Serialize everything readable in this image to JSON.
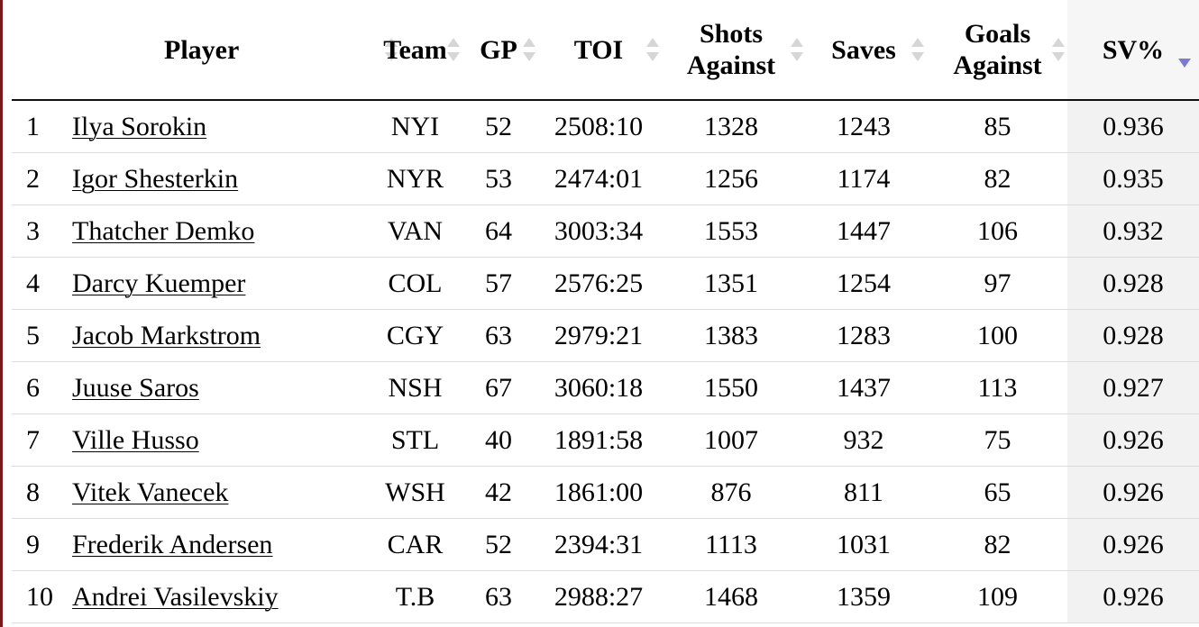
{
  "table": {
    "columns": [
      {
        "key": "player",
        "label": "Player",
        "sortable": true
      },
      {
        "key": "team",
        "label": "Team",
        "sortable": true
      },
      {
        "key": "gp",
        "label": "GP",
        "sortable": true
      },
      {
        "key": "toi",
        "label": "TOI",
        "sortable": true
      },
      {
        "key": "shots_against",
        "label_line1": "Shots",
        "label_line2": "Against",
        "sortable": true
      },
      {
        "key": "saves",
        "label": "Saves",
        "sortable": true
      },
      {
        "key": "goals_against",
        "label_line1": "Goals",
        "label_line2": "Against",
        "sortable": true
      },
      {
        "key": "sv_pct",
        "label": "SV%",
        "sortable": true,
        "sort": "descending"
      }
    ],
    "rows": [
      {
        "rank": "1",
        "player": "Ilya Sorokin",
        "team": "NYI",
        "gp": "52",
        "toi": "2508:10",
        "shots_against": "1328",
        "saves": "1243",
        "goals_against": "85",
        "sv_pct": "0.936"
      },
      {
        "rank": "2",
        "player": "Igor Shesterkin",
        "team": "NYR",
        "gp": "53",
        "toi": "2474:01",
        "shots_against": "1256",
        "saves": "1174",
        "goals_against": "82",
        "sv_pct": "0.935"
      },
      {
        "rank": "3",
        "player": "Thatcher Demko",
        "team": "VAN",
        "gp": "64",
        "toi": "3003:34",
        "shots_against": "1553",
        "saves": "1447",
        "goals_against": "106",
        "sv_pct": "0.932"
      },
      {
        "rank": "4",
        "player": "Darcy Kuemper",
        "team": "COL",
        "gp": "57",
        "toi": "2576:25",
        "shots_against": "1351",
        "saves": "1254",
        "goals_against": "97",
        "sv_pct": "0.928"
      },
      {
        "rank": "5",
        "player": "Jacob Markstrom",
        "team": "CGY",
        "gp": "63",
        "toi": "2979:21",
        "shots_against": "1383",
        "saves": "1283",
        "goals_against": "100",
        "sv_pct": "0.928"
      },
      {
        "rank": "6",
        "player": "Juuse Saros",
        "team": "NSH",
        "gp": "67",
        "toi": "3060:18",
        "shots_against": "1550",
        "saves": "1437",
        "goals_against": "113",
        "sv_pct": "0.927"
      },
      {
        "rank": "7",
        "player": "Ville Husso",
        "team": "STL",
        "gp": "40",
        "toi": "1891:58",
        "shots_against": "1007",
        "saves": "932",
        "goals_against": "75",
        "sv_pct": "0.926"
      },
      {
        "rank": "8",
        "player": "Vitek Vanecek",
        "team": "WSH",
        "gp": "42",
        "toi": "1861:00",
        "shots_against": "876",
        "saves": "811",
        "goals_against": "65",
        "sv_pct": "0.926"
      },
      {
        "rank": "9",
        "player": "Frederik Andersen",
        "team": "CAR",
        "gp": "52",
        "toi": "2394:31",
        "shots_against": "1113",
        "saves": "1031",
        "goals_against": "82",
        "sv_pct": "0.926"
      },
      {
        "rank": "10",
        "player": "Andrei Vasilevskiy",
        "team": "T.B",
        "gp": "63",
        "toi": "2988:27",
        "shots_against": "1468",
        "saves": "1359",
        "goals_against": "109",
        "sv_pct": "0.926"
      }
    ]
  },
  "icons": {
    "sort_neutral": "sort-arrows-icon",
    "sort_descending": "sort-descending-icon"
  },
  "colors": {
    "page_edge": "#7a1a1a",
    "sort_inactive": "#d6d6d6",
    "sort_active": "#7b7bd4",
    "sorted_column_bg": "#f2f2f2"
  }
}
